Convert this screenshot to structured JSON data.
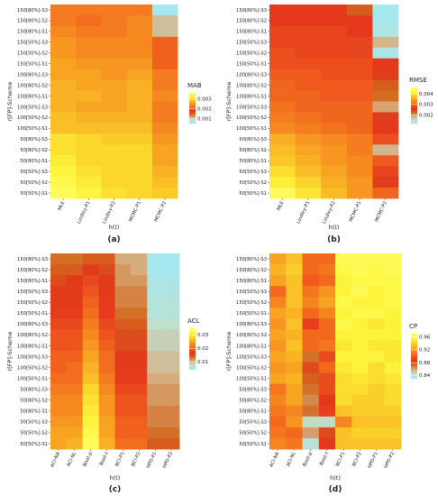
{
  "figure": {
    "colormap": [
      "#a6e8f0",
      "#bfe0cc",
      "#d8a878",
      "#d2691e",
      "#e3341c",
      "#f05a1e",
      "#f5831f",
      "#f9ad24",
      "#fbd52b",
      "#fdf53c",
      "#ffff66"
    ]
  },
  "chart_data": [
    {
      "type": "heatmap",
      "panel_label": "(a)",
      "xlabel": "h(t)",
      "ylabel": "r[FP]-Scheme",
      "legend_title": "MAB",
      "x": [
        "MLE",
        "Lindley-P1",
        "Lindley-P2",
        "MCMC-P1",
        "MCMC-P2"
      ],
      "y": [
        "150[80%]-S3",
        "150[80%]-S2",
        "150[80%]-S1",
        "150[50%]-S3",
        "150[50%]-S2",
        "150[50%]-S1",
        "100[80%]-S3",
        "100[80%]-S2",
        "100[80%]-S1",
        "100[50%]-S3",
        "100[50%]-S2",
        "100[50%]-S1",
        "50[80%]-S3",
        "50[80%]-S2",
        "50[80%]-S1",
        "50[50%]-S3",
        "50[50%]-S2",
        "50[50%]-S1"
      ],
      "vrange": [
        0.0005,
        0.0036
      ],
      "legend_ticks": [
        0.001,
        0.002,
        0.003
      ],
      "legend_tick_labels": [
        "0.001",
        "0.002",
        "0.003"
      ],
      "values": [
        [
          0.0023,
          0.0023,
          0.0023,
          0.0023,
          0.0005
        ],
        [
          0.0023,
          0.0022,
          0.0023,
          0.0024,
          0.001
        ],
        [
          0.0024,
          0.0023,
          0.0023,
          0.0024,
          0.001
        ],
        [
          0.0025,
          0.0024,
          0.0024,
          0.0024,
          0.0021
        ],
        [
          0.0025,
          0.0024,
          0.0024,
          0.0024,
          0.0021
        ],
        [
          0.0026,
          0.0025,
          0.0025,
          0.0025,
          0.0021
        ],
        [
          0.0026,
          0.0026,
          0.0025,
          0.0026,
          0.0023
        ],
        [
          0.0027,
          0.0026,
          0.0026,
          0.0027,
          0.0023
        ],
        [
          0.0027,
          0.0027,
          0.0026,
          0.0027,
          0.0024
        ],
        [
          0.0027,
          0.0026,
          0.0026,
          0.0027,
          0.0023
        ],
        [
          0.0028,
          0.0027,
          0.0027,
          0.0027,
          0.0023
        ],
        [
          0.0028,
          0.0028,
          0.0028,
          0.0028,
          0.0024
        ],
        [
          0.0031,
          0.003,
          0.0029,
          0.0029,
          0.0025
        ],
        [
          0.0031,
          0.003,
          0.003,
          0.003,
          0.0026
        ],
        [
          0.0032,
          0.003,
          0.003,
          0.003,
          0.0026
        ],
        [
          0.0033,
          0.0031,
          0.003,
          0.003,
          0.0027
        ],
        [
          0.0034,
          0.0032,
          0.003,
          0.003,
          0.0028
        ],
        [
          0.0035,
          0.0033,
          0.0031,
          0.003,
          0.0029
        ]
      ]
    },
    {
      "type": "heatmap",
      "panel_label": "(b)",
      "xlabel": "h(t)",
      "ylabel": "r[FP]-Scheme",
      "legend_title": "RMSE",
      "x": [
        "MLE",
        "Lindley-P1",
        "Lindley-P2",
        "MCMC-P1",
        "MCMC-P2"
      ],
      "y": [
        "150[80%]-S3",
        "150[80%]-S2",
        "150[80%]-S1",
        "150[50%]-S3",
        "150[50%]-S2",
        "150[50%]-S1",
        "100[80%]-S3",
        "100[80%]-S2",
        "100[80%]-S1",
        "100[50%]-S3",
        "100[50%]-S2",
        "100[50%]-S1",
        "50[80%]-S3",
        "50[80%]-S2",
        "50[80%]-S1",
        "50[50%]-S3",
        "50[50%]-S2",
        "50[50%]-S1"
      ],
      "vrange": [
        0.0012,
        0.0046
      ],
      "legend_ticks": [
        0.002,
        0.003,
        0.004
      ],
      "legend_tick_labels": [
        "0.002",
        "0.003",
        "0.004"
      ],
      "values": [
        [
          0.0026,
          0.0026,
          0.0026,
          0.0023,
          0.0012
        ],
        [
          0.0026,
          0.0026,
          0.0026,
          0.0026,
          0.0012
        ],
        [
          0.0027,
          0.0027,
          0.0027,
          0.0026,
          0.0013
        ],
        [
          0.0027,
          0.0027,
          0.0027,
          0.0027,
          0.0018
        ],
        [
          0.0028,
          0.0027,
          0.0027,
          0.0027,
          0.0013
        ],
        [
          0.0028,
          0.0028,
          0.0028,
          0.0028,
          0.0026
        ],
        [
          0.0029,
          0.0029,
          0.0028,
          0.0028,
          0.0025
        ],
        [
          0.003,
          0.0029,
          0.0029,
          0.0029,
          0.0023
        ],
        [
          0.003,
          0.003,
          0.0029,
          0.0029,
          0.0022
        ],
        [
          0.0031,
          0.003,
          0.003,
          0.003,
          0.0019
        ],
        [
          0.0032,
          0.0031,
          0.003,
          0.003,
          0.0025
        ],
        [
          0.0033,
          0.0032,
          0.0031,
          0.003,
          0.0026
        ],
        [
          0.0036,
          0.0034,
          0.0033,
          0.0032,
          0.0028
        ],
        [
          0.0037,
          0.0035,
          0.0034,
          0.0032,
          0.0018
        ],
        [
          0.0038,
          0.0036,
          0.0034,
          0.0033,
          0.0029
        ],
        [
          0.004,
          0.0037,
          0.0035,
          0.0033,
          0.0027
        ],
        [
          0.0042,
          0.0039,
          0.0036,
          0.0034,
          0.0025
        ],
        [
          0.0045,
          0.0041,
          0.0037,
          0.0034,
          0.003
        ]
      ]
    },
    {
      "type": "heatmap",
      "panel_label": "(c)",
      "xlabel": "h(t)",
      "ylabel": "r[FP]-Scheme",
      "legend_title": "ACL",
      "x": [
        "ACI-NA",
        "ACI-NL",
        "Boot-p",
        "Boot-t",
        "BCI-P1",
        "BCI-P2",
        "HPD-P1",
        "HPD-P2"
      ],
      "y": [
        "150[80%]-S3",
        "150[80%]-S2",
        "150[80%]-S1",
        "150[50%]-S3",
        "150[50%]-S2",
        "150[50%]-S1",
        "100[80%]-S3",
        "100[80%]-S2",
        "100[80%]-S1",
        "100[50%]-S3",
        "100[50%]-S2",
        "100[50%]-S1",
        "50[80%]-S3",
        "50[80%]-S2",
        "50[80%]-S1",
        "50[50%]-S3",
        "50[50%]-S2",
        "50[50%]-S1"
      ],
      "vrange": [
        0.004,
        0.035
      ],
      "legend_ticks": [
        0.01,
        0.02,
        0.03
      ],
      "legend_tick_labels": [
        "0.01",
        "0.02",
        "0.03"
      ],
      "values": [
        [
          0.013,
          0.013,
          0.014,
          0.014,
          0.01,
          0.01,
          0.004,
          0.004
        ],
        [
          0.014,
          0.014,
          0.016,
          0.015,
          0.011,
          0.01,
          0.004,
          0.004
        ],
        [
          0.015,
          0.016,
          0.018,
          0.016,
          0.011,
          0.011,
          0.005,
          0.005
        ],
        [
          0.016,
          0.016,
          0.019,
          0.016,
          0.012,
          0.012,
          0.005,
          0.005
        ],
        [
          0.016,
          0.016,
          0.02,
          0.017,
          0.012,
          0.012,
          0.006,
          0.006
        ],
        [
          0.017,
          0.017,
          0.021,
          0.017,
          0.013,
          0.013,
          0.006,
          0.006
        ],
        [
          0.018,
          0.018,
          0.022,
          0.018,
          0.014,
          0.014,
          0.007,
          0.007
        ],
        [
          0.019,
          0.019,
          0.023,
          0.019,
          0.015,
          0.015,
          0.008,
          0.008
        ],
        [
          0.019,
          0.019,
          0.024,
          0.02,
          0.015,
          0.015,
          0.008,
          0.008
        ],
        [
          0.02,
          0.02,
          0.025,
          0.021,
          0.016,
          0.016,
          0.009,
          0.009
        ],
        [
          0.02,
          0.021,
          0.026,
          0.021,
          0.016,
          0.016,
          0.009,
          0.009
        ],
        [
          0.021,
          0.021,
          0.027,
          0.022,
          0.017,
          0.017,
          0.01,
          0.01
        ],
        [
          0.022,
          0.022,
          0.029,
          0.023,
          0.018,
          0.018,
          0.011,
          0.011
        ],
        [
          0.023,
          0.023,
          0.03,
          0.024,
          0.019,
          0.019,
          0.011,
          0.011
        ],
        [
          0.023,
          0.023,
          0.031,
          0.024,
          0.019,
          0.019,
          0.012,
          0.012
        ],
        [
          0.024,
          0.024,
          0.032,
          0.025,
          0.02,
          0.02,
          0.012,
          0.012
        ],
        [
          0.025,
          0.025,
          0.033,
          0.025,
          0.02,
          0.02,
          0.013,
          0.013
        ],
        [
          0.025,
          0.026,
          0.034,
          0.026,
          0.021,
          0.021,
          0.014,
          0.014
        ]
      ]
    },
    {
      "type": "heatmap",
      "panel_label": "(d)",
      "xlabel": "h(t)",
      "ylabel": "r[FP]-Scheme",
      "legend_title": "CP",
      "x": [
        "ACI-NA",
        "ACI-NL",
        "Boot-p",
        "Boot-t",
        "BCI-P1",
        "BCI-P2",
        "HPD-P1",
        "HPD-P2"
      ],
      "y": [
        "150[80%]-S3",
        "150[80%]-S2",
        "150[80%]-S1",
        "150[50%]-S3",
        "150[50%]-S2",
        "150[50%]-S1",
        "100[80%]-S3",
        "100[80%]-S2",
        "100[80%]-S1",
        "100[50%]-S3",
        "100[50%]-S2",
        "100[50%]-S1",
        "50[80%]-S3",
        "50[80%]-S2",
        "50[80%]-S1",
        "50[50%]-S3",
        "50[50%]-S2",
        "50[50%]-S1"
      ],
      "vrange": [
        0.83,
        0.97
      ],
      "legend_ticks": [
        0.84,
        0.88,
        0.92,
        0.96
      ],
      "legend_tick_labels": [
        "0.84",
        "0.88",
        "0.92",
        "0.96"
      ],
      "values": [
        [
          0.925,
          0.935,
          0.905,
          0.905,
          0.965,
          0.965,
          0.965,
          0.965
        ],
        [
          0.93,
          0.94,
          0.905,
          0.91,
          0.96,
          0.965,
          0.96,
          0.965
        ],
        [
          0.925,
          0.935,
          0.9,
          0.905,
          0.955,
          0.96,
          0.96,
          0.96
        ],
        [
          0.905,
          0.935,
          0.91,
          0.92,
          0.955,
          0.965,
          0.955,
          0.96
        ],
        [
          0.915,
          0.935,
          0.915,
          0.925,
          0.96,
          0.955,
          0.955,
          0.96
        ],
        [
          0.925,
          0.93,
          0.905,
          0.915,
          0.955,
          0.96,
          0.96,
          0.955
        ],
        [
          0.92,
          0.935,
          0.89,
          0.905,
          0.96,
          0.955,
          0.95,
          0.955
        ],
        [
          0.925,
          0.93,
          0.905,
          0.905,
          0.955,
          0.955,
          0.955,
          0.955
        ],
        [
          0.92,
          0.935,
          0.905,
          0.91,
          0.95,
          0.955,
          0.95,
          0.95
        ],
        [
          0.925,
          0.93,
          0.87,
          0.895,
          0.955,
          0.955,
          0.955,
          0.95
        ],
        [
          0.92,
          0.925,
          0.88,
          0.905,
          0.95,
          0.955,
          0.945,
          0.955
        ],
        [
          0.925,
          0.93,
          0.875,
          0.895,
          0.945,
          0.95,
          0.945,
          0.95
        ],
        [
          0.91,
          0.925,
          0.87,
          0.895,
          0.945,
          0.945,
          0.94,
          0.945
        ],
        [
          0.915,
          0.925,
          0.865,
          0.885,
          0.945,
          0.94,
          0.94,
          0.945
        ],
        [
          0.91,
          0.915,
          0.87,
          0.89,
          0.935,
          0.94,
          0.94,
          0.94
        ],
        [
          0.905,
          0.92,
          0.845,
          0.845,
          0.915,
          0.935,
          0.935,
          0.935
        ],
        [
          0.91,
          0.905,
          0.86,
          0.88,
          0.935,
          0.94,
          0.94,
          0.94
        ],
        [
          0.915,
          0.91,
          0.84,
          0.885,
          0.935,
          0.935,
          0.935,
          0.935
        ]
      ]
    }
  ]
}
